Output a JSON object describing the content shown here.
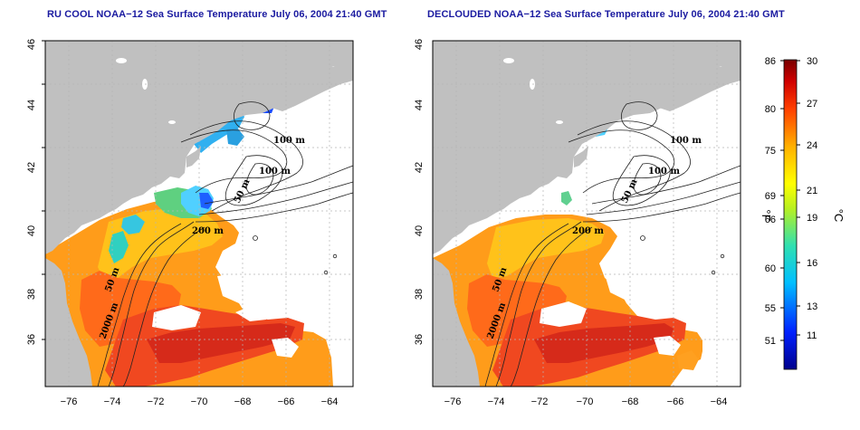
{
  "titles": {
    "left": "RU COOL NOAA−12 Sea Surface Temperature July 06, 2004 21:40 GMT",
    "right": "DECLOUDED NOAA−12 Sea Surface Temperature July 06, 2004 21:40 GMT"
  },
  "map": {
    "lat_ticks": [
      "36",
      "38",
      "40",
      "42",
      "44",
      "46"
    ],
    "lon_ticks": [
      "−76",
      "−74",
      "−72",
      "−70",
      "−68",
      "−66",
      "−64"
    ],
    "contour_labels": {
      "left": [
        "100 m",
        "100 m",
        "50 m",
        "200 m",
        "50 m",
        "2000 m"
      ],
      "right": [
        "100 m",
        "100 m",
        "50 m",
        "200 m",
        "50 m",
        "2000 m"
      ]
    },
    "colors": {
      "land": "#c0c0c0",
      "nodata": "#ffffff",
      "grid": "#b0b0b0"
    }
  },
  "colorbar": {
    "fahrenheit_ticks": [
      "86",
      "80",
      "75",
      "69",
      "66",
      "60",
      "55",
      "51"
    ],
    "celsius_ticks": [
      "30",
      "27",
      "24",
      "21",
      "19",
      "16",
      "13",
      "11"
    ],
    "fahrenheit_unit": "°F",
    "celsius_unit": "°C"
  }
}
